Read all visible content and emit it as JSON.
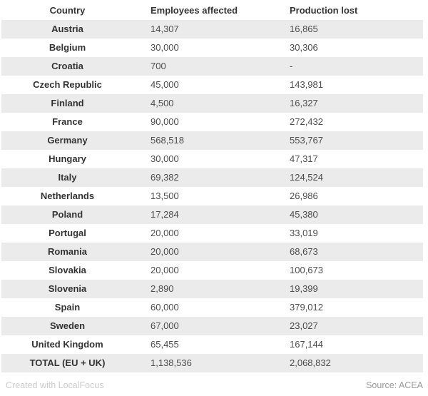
{
  "chart_data": {
    "type": "table",
    "columns": [
      "Country",
      "Employees affected",
      "Production lost"
    ],
    "rows": [
      [
        "Austria",
        "14,307",
        "16,865"
      ],
      [
        "Belgium",
        "30,000",
        "30,306"
      ],
      [
        "Croatia",
        "700",
        "-"
      ],
      [
        "Czech Republic",
        "45,000",
        "143,981"
      ],
      [
        "Finland",
        "4,500",
        "16,327"
      ],
      [
        "France",
        "90,000",
        "272,432"
      ],
      [
        "Germany",
        "568,518",
        "553,767"
      ],
      [
        "Hungary",
        "30,000",
        "47,317"
      ],
      [
        "Italy",
        "69,382",
        "124,524"
      ],
      [
        "Netherlands",
        "13,500",
        "26,986"
      ],
      [
        "Poland",
        "17,284",
        "45,380"
      ],
      [
        "Portugal",
        "20,000",
        "33,019"
      ],
      [
        "Romania",
        "20,000",
        "68,673"
      ],
      [
        "Slovakia",
        "20,000",
        "100,673"
      ],
      [
        "Slovenia",
        "2,890",
        "19,399"
      ],
      [
        "Spain",
        "60,000",
        "379,012"
      ],
      [
        "Sweden",
        "67,000",
        "23,027"
      ],
      [
        "United Kingdom",
        "65,455",
        "167,144"
      ],
      [
        "TOTAL (EU + UK)",
        "1,138,536",
        "2,068,832"
      ]
    ],
    "layout": {
      "striped": true,
      "stripe_pattern": "odd-rows-gray",
      "first_column_align": "center",
      "value_columns_align": "left",
      "total_row_index": 18
    }
  },
  "footer": {
    "credit": "Created with LocalFocus",
    "source": "Source: ACEA"
  },
  "colors": {
    "row_stripe": "#ebebeb",
    "row_plain": "#ffffff",
    "header_text": "#333333",
    "country_text": "#333333",
    "value_text": "#4d4d4d",
    "credit_text": "#cccccc",
    "source_text": "#999999"
  }
}
